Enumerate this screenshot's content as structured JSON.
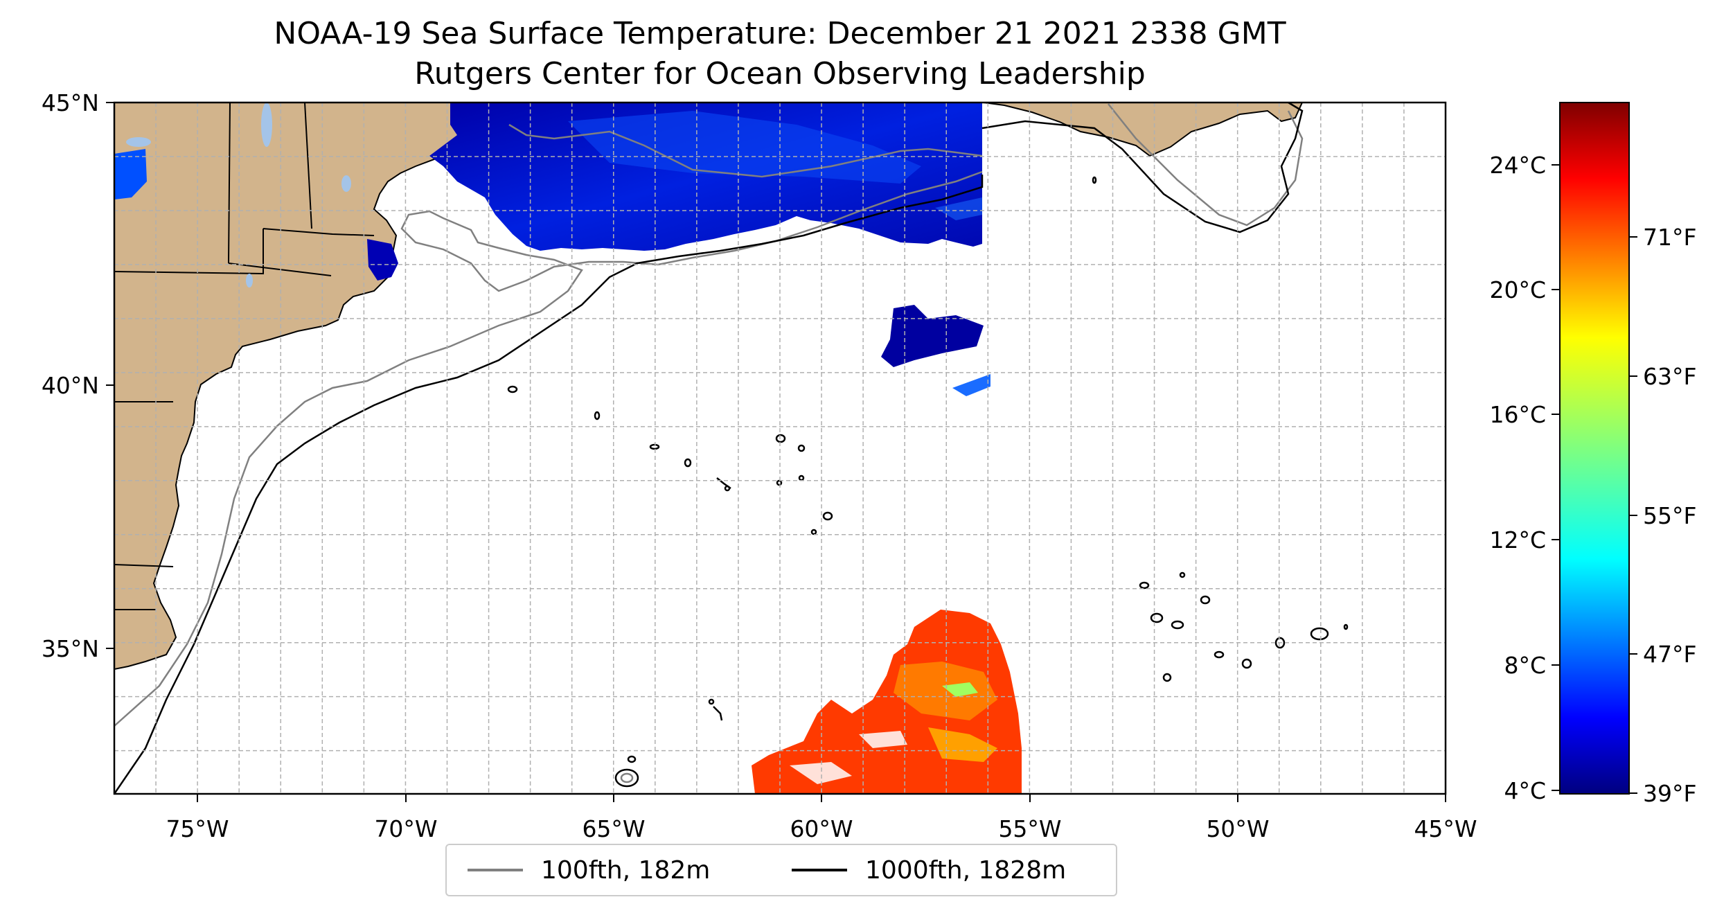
{
  "title": {
    "line1": "NOAA-19 Sea Surface Temperature: December 21 2021 2338 GMT",
    "line2": "Rutgers Center for Ocean Observing Leadership"
  },
  "map": {
    "lon_range": [
      -77,
      -45
    ],
    "lat_range": [
      32.2,
      45
    ],
    "lon_ticks": [
      "75°W",
      "70°W",
      "65°W",
      "60°W",
      "55°W",
      "50°W",
      "45°W"
    ],
    "lat_ticks": [
      "45°N",
      "40°N",
      "35°N"
    ],
    "gridlines": true,
    "land_color": "#d2b48c",
    "ocean_color": "#ffffff",
    "isobath_100fth_color": "#808080",
    "isobath_1000fth_color": "#000000"
  },
  "colorbar": {
    "celsius_ticks": [
      "24°C",
      "20°C",
      "16°C",
      "12°C",
      "8°C",
      "4°C"
    ],
    "fahrenheit_ticks": [
      "71°F",
      "63°F",
      "55°F",
      "47°F",
      "39°F"
    ],
    "colormap": "jet"
  },
  "legend": {
    "items": [
      {
        "label": "100fth, 182m",
        "color": "#808080"
      },
      {
        "label": "1000fth, 1828m",
        "color": "#000000"
      }
    ]
  }
}
